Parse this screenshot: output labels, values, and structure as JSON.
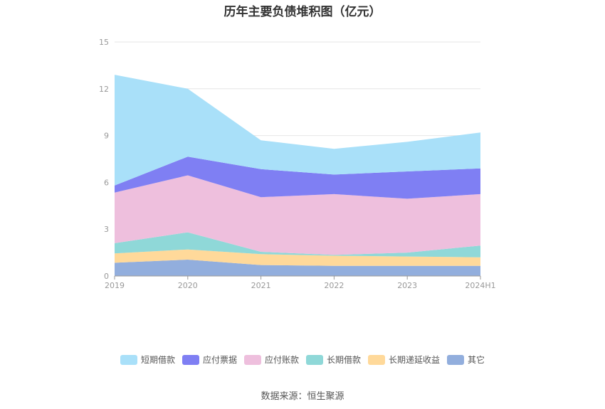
{
  "chart_data": {
    "type": "area",
    "title": "历年主要负债堆积图（亿元）",
    "categories": [
      "2019",
      "2020",
      "2021",
      "2022",
      "2023",
      "2024H1"
    ],
    "y_ticks": [
      "0",
      "3",
      "6",
      "9",
      "12",
      "15"
    ],
    "ylim": [
      0,
      15
    ],
    "stacked": true,
    "grid": true,
    "legend_position": "bottom",
    "series": [
      {
        "name": "其它",
        "color": "#92aedd",
        "values": [
          0.85,
          1.05,
          0.7,
          0.65,
          0.65,
          0.65
        ]
      },
      {
        "name": "长期递延收益",
        "color": "#ffd99a",
        "values": [
          0.6,
          0.65,
          0.7,
          0.65,
          0.6,
          0.55
        ]
      },
      {
        "name": "长期借款",
        "color": "#8fd8d8",
        "values": [
          0.65,
          1.1,
          0.15,
          0.05,
          0.25,
          0.75
        ]
      },
      {
        "name": "应付账款",
        "color": "#eebfdd",
        "values": [
          3.25,
          3.65,
          3.5,
          3.9,
          3.45,
          3.3
        ]
      },
      {
        "name": "应付票据",
        "color": "#7f7ff3",
        "values": [
          0.45,
          1.2,
          1.8,
          1.25,
          1.75,
          1.65
        ]
      },
      {
        "name": "短期借款",
        "color": "#a9e0f9",
        "values": [
          7.1,
          4.35,
          1.85,
          1.65,
          1.9,
          2.3
        ]
      }
    ]
  },
  "legend_order": [
    "短期借款",
    "应付票据",
    "应付账款",
    "长期借款",
    "长期递延收益",
    "其它"
  ],
  "source": "数据来源：恒生聚源"
}
